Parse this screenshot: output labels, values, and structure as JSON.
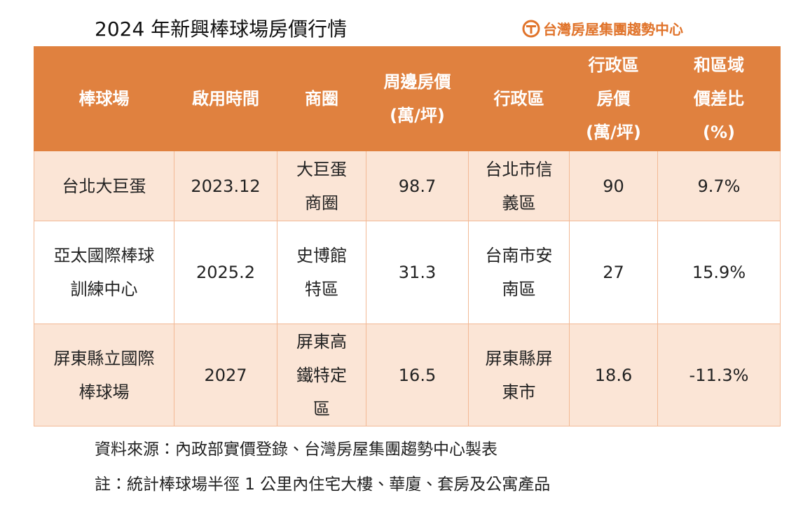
{
  "header": {
    "title": "2024 年新興棒球場房價行情",
    "logo": "台灣房屋集團趨勢中心"
  },
  "table": {
    "columns": [
      "棒球場",
      "啟用時間",
      "商圈",
      "周邊房價\n(萬/坪)",
      "行政區",
      "行政區\n房價\n(萬/坪)",
      "和區域\n價差比\n(%)"
    ],
    "rows": [
      [
        "台北大巨蛋",
        "2023.12",
        "大巨蛋\n商圈",
        "98.7",
        "台北市信\n義區",
        "90",
        "9.7%"
      ],
      [
        "亞太國際棒球\n訓練中心",
        "2025.2",
        "史博館\n特區",
        "31.3",
        "台南市安\n南區",
        "27",
        "15.9%"
      ],
      [
        "屏東縣立國際\n棒球場",
        "2027",
        "屏東高\n鐵特定\n區",
        "16.5",
        "屏東縣屏\n東市",
        "18.6",
        "-11.3%"
      ]
    ]
  },
  "footer": {
    "source": "資料來源：內政部實價登錄、台灣房屋集團趨勢中心製表",
    "note": "註：統計棒球場半徑 1 公里內住宅大樓、華廈、套房及公寓產品"
  }
}
